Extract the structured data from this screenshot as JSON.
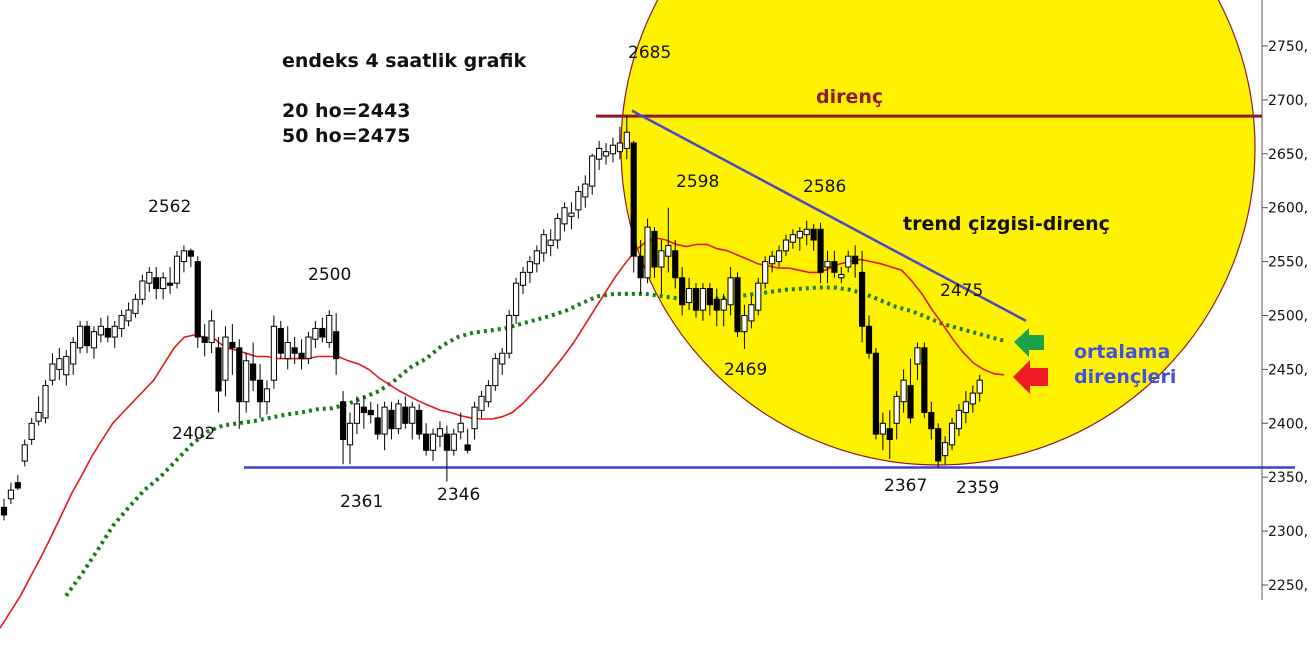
{
  "chart_data": {
    "type": "candlestick",
    "title": "endeks 4 saatlik grafik",
    "ma_notes": [
      "20 ho=2443",
      "50 ho=2475"
    ],
    "y_ticks": [
      "2750,",
      "2700,",
      "2650,",
      "2600,",
      "2550,",
      "2500,",
      "2450,",
      "2400,",
      "2350,",
      "2300,",
      "2250,"
    ],
    "ylim": [
      2232,
      2802
    ],
    "grid": false,
    "point_labels": [
      "2562",
      "2500",
      "2402",
      "2361",
      "2346",
      "2685",
      "2598",
      "2586",
      "2469",
      "2475",
      "2367",
      "2359"
    ],
    "annotations": {
      "resistance": "direnç",
      "trend": "trend çizgisi-direnç",
      "ma_res_1": "ortalama",
      "ma_res_2": "dirençleri"
    },
    "resistance_level": 2685,
    "support_level": 2359,
    "trendline": {
      "from": 2690,
      "to": 2495
    },
    "colors": {
      "highlight": "#fff200",
      "resistance": "#8b1a2b",
      "support": "#4040d0",
      "ma20": "#e31919",
      "ma50": "#1a7a1a",
      "arrow_green": "#1aa34a",
      "arrow_red": "#ee1c24",
      "note_blue": "#4050e0"
    },
    "candles": [
      [
        2322,
        2330,
        2310,
        2315
      ],
      [
        2330,
        2345,
        2325,
        2338
      ],
      [
        2345,
        2352,
        2338,
        2340
      ],
      [
        2365,
        2385,
        2360,
        2380
      ],
      [
        2385,
        2405,
        2380,
        2400
      ],
      [
        2402,
        2425,
        2398,
        2410
      ],
      [
        2405,
        2440,
        2400,
        2435
      ],
      [
        2440,
        2465,
        2435,
        2455
      ],
      [
        2450,
        2470,
        2440,
        2460
      ],
      [
        2445,
        2468,
        2435,
        2462
      ],
      [
        2455,
        2480,
        2445,
        2475
      ],
      [
        2470,
        2495,
        2465,
        2490
      ],
      [
        2490,
        2495,
        2465,
        2472
      ],
      [
        2470,
        2490,
        2460,
        2485
      ],
      [
        2482,
        2498,
        2475,
        2490
      ],
      [
        2488,
        2500,
        2475,
        2480
      ],
      [
        2480,
        2495,
        2470,
        2490
      ],
      [
        2488,
        2505,
        2480,
        2500
      ],
      [
        2495,
        2512,
        2490,
        2505
      ],
      [
        2502,
        2520,
        2498,
        2515
      ],
      [
        2515,
        2538,
        2510,
        2532
      ],
      [
        2530,
        2545,
        2522,
        2540
      ],
      [
        2535,
        2545,
        2515,
        2525
      ],
      [
        2525,
        2540,
        2515,
        2535
      ],
      [
        2530,
        2545,
        2520,
        2528
      ],
      [
        2530,
        2560,
        2525,
        2555
      ],
      [
        2550,
        2565,
        2540,
        2560
      ],
      [
        2560,
        2562,
        2545,
        2555
      ],
      [
        2550,
        2555,
        2470,
        2480
      ],
      [
        2480,
        2492,
        2462,
        2475
      ],
      [
        2475,
        2505,
        2465,
        2495
      ],
      [
        2470,
        2480,
        2410,
        2430
      ],
      [
        2440,
        2490,
        2425,
        2480
      ],
      [
        2475,
        2492,
        2445,
        2470
      ],
      [
        2470,
        2478,
        2395,
        2420
      ],
      [
        2420,
        2465,
        2410,
        2458
      ],
      [
        2455,
        2475,
        2430,
        2440
      ],
      [
        2440,
        2455,
        2405,
        2420
      ],
      [
        2420,
        2440,
        2408,
        2432
      ],
      [
        2440,
        2500,
        2432,
        2490
      ],
      [
        2488,
        2495,
        2460,
        2465
      ],
      [
        2460,
        2490,
        2450,
        2475
      ],
      [
        2470,
        2480,
        2455,
        2465
      ],
      [
        2465,
        2478,
        2450,
        2460
      ],
      [
        2460,
        2485,
        2455,
        2480
      ],
      [
        2478,
        2495,
        2470,
        2488
      ],
      [
        2488,
        2498,
        2475,
        2480
      ],
      [
        2475,
        2505,
        2470,
        2500
      ],
      [
        2485,
        2502,
        2445,
        2460
      ],
      [
        2420,
        2430,
        2362,
        2385
      ],
      [
        2380,
        2410,
        2362,
        2400
      ],
      [
        2400,
        2425,
        2390,
        2418
      ],
      [
        2415,
        2425,
        2395,
        2410
      ],
      [
        2412,
        2420,
        2400,
        2408
      ],
      [
        2405,
        2418,
        2385,
        2390
      ],
      [
        2390,
        2420,
        2375,
        2415
      ],
      [
        2412,
        2420,
        2385,
        2395
      ],
      [
        2395,
        2422,
        2390,
        2418
      ],
      [
        2415,
        2425,
        2395,
        2400
      ],
      [
        2400,
        2420,
        2385,
        2415
      ],
      [
        2412,
        2418,
        2385,
        2390
      ],
      [
        2390,
        2400,
        2370,
        2375
      ],
      [
        2375,
        2395,
        2365,
        2390
      ],
      [
        2388,
        2402,
        2378,
        2395
      ],
      [
        2390,
        2398,
        2346,
        2375
      ],
      [
        2375,
        2395,
        2370,
        2390
      ],
      [
        2392,
        2410,
        2385,
        2400
      ],
      [
        2380,
        2395,
        2372,
        2375
      ],
      [
        2395,
        2420,
        2385,
        2415
      ],
      [
        2412,
        2430,
        2405,
        2425
      ],
      [
        2420,
        2440,
        2415,
        2435
      ],
      [
        2435,
        2465,
        2430,
        2460
      ],
      [
        2455,
        2470,
        2445,
        2465
      ],
      [
        2465,
        2505,
        2460,
        2500
      ],
      [
        2500,
        2535,
        2492,
        2530
      ],
      [
        2528,
        2545,
        2520,
        2540
      ],
      [
        2540,
        2555,
        2530,
        2550
      ],
      [
        2548,
        2565,
        2540,
        2560
      ],
      [
        2558,
        2580,
        2550,
        2575
      ],
      [
        2565,
        2580,
        2555,
        2570
      ],
      [
        2570,
        2595,
        2562,
        2590
      ],
      [
        2585,
        2605,
        2578,
        2600
      ],
      [
        2592,
        2605,
        2580,
        2595
      ],
      [
        2598,
        2620,
        2590,
        2615
      ],
      [
        2610,
        2630,
        2600,
        2622
      ],
      [
        2620,
        2650,
        2612,
        2648
      ],
      [
        2645,
        2662,
        2635,
        2655
      ],
      [
        2648,
        2660,
        2640,
        2652
      ],
      [
        2650,
        2665,
        2642,
        2658
      ],
      [
        2652,
        2675,
        2645,
        2660
      ],
      [
        2655,
        2685,
        2645,
        2670
      ],
      [
        2660,
        2662,
        2540,
        2555
      ],
      [
        2555,
        2570,
        2520,
        2535
      ],
      [
        2535,
        2590,
        2530,
        2582
      ],
      [
        2578,
        2582,
        2535,
        2545
      ],
      [
        2545,
        2570,
        2520,
        2560
      ],
      [
        2555,
        2600,
        2540,
        2565
      ],
      [
        2560,
        2570,
        2525,
        2535
      ],
      [
        2535,
        2545,
        2500,
        2510
      ],
      [
        2512,
        2535,
        2505,
        2525
      ],
      [
        2525,
        2530,
        2498,
        2505
      ],
      [
        2505,
        2530,
        2495,
        2525
      ],
      [
        2525,
        2530,
        2500,
        2510
      ],
      [
        2515,
        2525,
        2490,
        2505
      ],
      [
        2505,
        2520,
        2490,
        2515
      ],
      [
        2510,
        2545,
        2500,
        2535
      ],
      [
        2535,
        2540,
        2480,
        2485
      ],
      [
        2485,
        2510,
        2469,
        2500
      ],
      [
        2495,
        2518,
        2488,
        2510
      ],
      [
        2505,
        2535,
        2500,
        2530
      ],
      [
        2530,
        2555,
        2525,
        2550
      ],
      [
        2548,
        2560,
        2540,
        2555
      ],
      [
        2550,
        2565,
        2545,
        2560
      ],
      [
        2560,
        2575,
        2555,
        2570
      ],
      [
        2568,
        2580,
        2562,
        2575
      ],
      [
        2572,
        2582,
        2560,
        2578
      ],
      [
        2575,
        2588,
        2565,
        2580
      ],
      [
        2580,
        2585,
        2560,
        2570
      ],
      [
        2580,
        2586,
        2530,
        2540
      ],
      [
        2545,
        2560,
        2530,
        2550
      ],
      [
        2550,
        2560,
        2535,
        2540
      ],
      [
        2535,
        2545,
        2530,
        2538
      ],
      [
        2545,
        2560,
        2540,
        2555
      ],
      [
        2555,
        2565,
        2535,
        2548
      ],
      [
        2540,
        2560,
        2475,
        2490
      ],
      [
        2490,
        2500,
        2460,
        2465
      ],
      [
        2465,
        2470,
        2385,
        2390
      ],
      [
        2390,
        2410,
        2375,
        2400
      ],
      [
        2395,
        2412,
        2367,
        2385
      ],
      [
        2400,
        2430,
        2385,
        2425
      ],
      [
        2420,
        2450,
        2410,
        2440
      ],
      [
        2435,
        2460,
        2400,
        2405
      ],
      [
        2455,
        2475,
        2440,
        2470
      ],
      [
        2470,
        2475,
        2405,
        2410
      ],
      [
        2410,
        2420,
        2385,
        2395
      ],
      [
        2395,
        2400,
        2359,
        2365
      ],
      [
        2370,
        2388,
        2362,
        2382
      ],
      [
        2380,
        2405,
        2375,
        2400
      ],
      [
        2395,
        2418,
        2388,
        2412
      ],
      [
        2410,
        2430,
        2400,
        2420
      ],
      [
        2418,
        2435,
        2410,
        2428
      ],
      [
        2428,
        2445,
        2420,
        2440
      ]
    ],
    "ma20": [
      2210,
      2225,
      2240,
      2258,
      2276,
      2295,
      2315,
      2335,
      2352,
      2370,
      2385,
      2400,
      2410,
      2420,
      2430,
      2440,
      2455,
      2470,
      2480,
      2482,
      2480,
      2478,
      2470,
      2468,
      2465,
      2462,
      2462,
      2460,
      2460,
      2460,
      2460,
      2462,
      2462,
      2462,
      2458,
      2455,
      2450,
      2442,
      2436,
      2430,
      2425,
      2420,
      2416,
      2412,
      2410,
      2407,
      2405,
      2404,
      2404,
      2406,
      2410,
      2418,
      2428,
      2438,
      2450,
      2462,
      2475,
      2490,
      2505,
      2520,
      2535,
      2548,
      2560,
      2568,
      2572,
      2570,
      2566,
      2564,
      2566,
      2566,
      2562,
      2560,
      2556,
      2552,
      2548,
      2546,
      2544,
      2544,
      2542,
      2540,
      2540,
      2544,
      2548,
      2550,
      2552,
      2550,
      2548,
      2545,
      2542,
      2532,
      2520,
      2505,
      2492,
      2478,
      2466,
      2456,
      2450,
      2446,
      2445
    ],
    "ma50": [
      2240,
      2260,
      2282,
      2305,
      2322,
      2338,
      2350,
      2365,
      2380,
      2392,
      2398,
      2400,
      2402,
      2405,
      2408,
      2410,
      2413,
      2414,
      2418,
      2424,
      2430,
      2440,
      2452,
      2460,
      2472,
      2480,
      2484,
      2486,
      2488,
      2492,
      2496,
      2500,
      2505,
      2512,
      2518,
      2520,
      2520,
      2520,
      2518,
      2516,
      2515,
      2515,
      2516,
      2518,
      2520,
      2522,
      2524,
      2525,
      2526,
      2526,
      2524,
      2520,
      2514,
      2508,
      2504,
      2498,
      2492,
      2488,
      2484,
      2480,
      2476
    ]
  }
}
